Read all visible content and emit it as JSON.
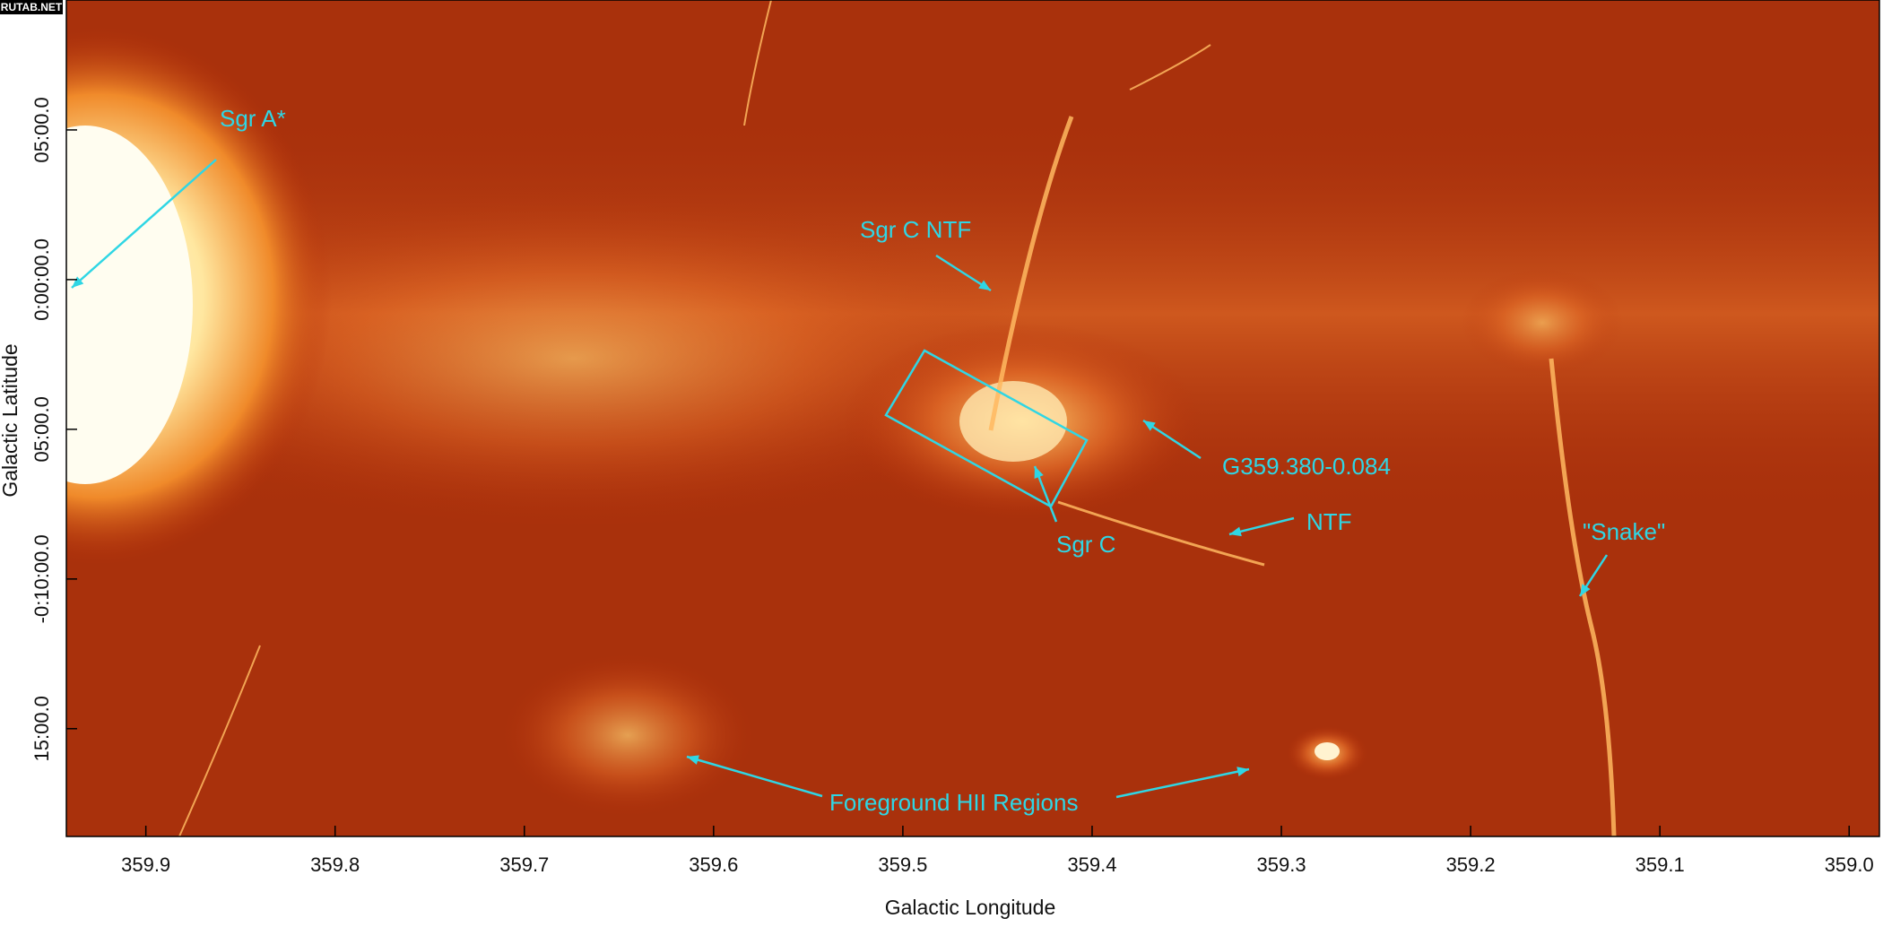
{
  "watermark": "RUTAB.NET",
  "chart_data": {
    "type": "image",
    "xlabel": "Galactic Longitude",
    "ylabel": "Galactic Latitude",
    "xlim": [
      359.942,
      358.984
    ],
    "ylim": [
      -18.6,
      9.34
    ],
    "xticks": [
      359.9,
      359.8,
      359.7,
      359.6,
      359.5,
      359.4,
      359.3,
      359.2,
      359.1,
      {
        "value": 359,
        "label": "359.0"
      }
    ],
    "yticks": [
      {
        "value": 5,
        "label": "05:00.0"
      },
      {
        "value": 0,
        "label": "0:00:00.0"
      },
      {
        "value": -5,
        "label": "05:00.0"
      },
      {
        "value": -10,
        "label": "-0:10:00.0"
      },
      {
        "value": -15,
        "label": "15:00.0"
      }
    ],
    "annotations": [
      "Sgr A*",
      "Sgr C NTF",
      "G359.380-0.084",
      "Sgr C",
      "NTF",
      "\"Snake\"",
      "Foreground HII Regions"
    ]
  }
}
